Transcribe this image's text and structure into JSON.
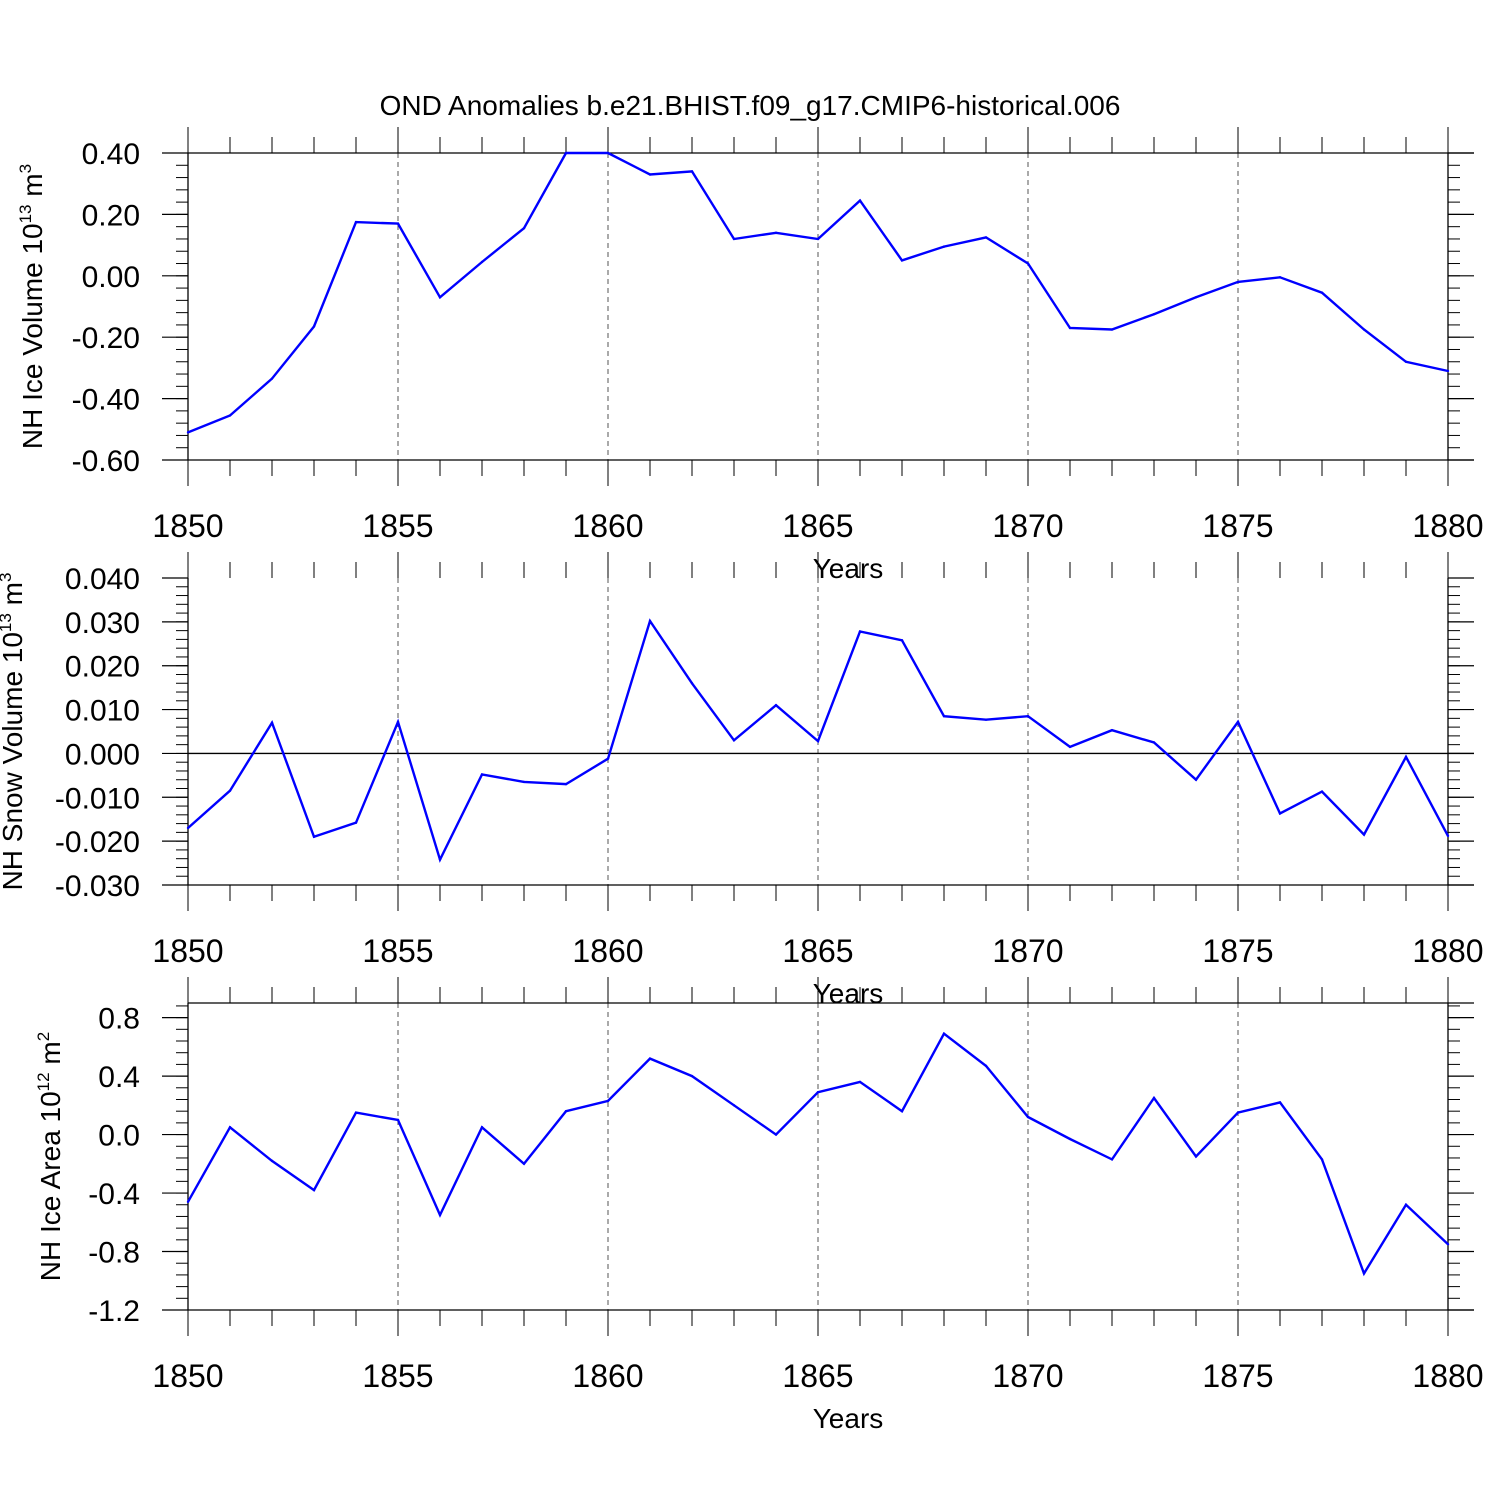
{
  "figure_title": "OND Anomalies b.e21.BHIST.f09_g17.CMIP6-historical.006",
  "colors": {
    "series": "#0000ff",
    "axis": "#000000",
    "grid": "#555555"
  },
  "chart_data": [
    {
      "type": "line",
      "title": "OND Anomalies b.e21.BHIST.f09_g17.CMIP6-historical.006",
      "ylabel": {
        "main": "NH Ice Volume 10",
        "sup": "13",
        "unit": " m",
        "unit_sup": "3"
      },
      "xlabel": "Years",
      "xlim": [
        1850,
        1880
      ],
      "ylim": [
        -0.6,
        0.4
      ],
      "yticks": [
        0.4,
        0.2,
        0.0,
        -0.2,
        -0.4,
        -0.6
      ],
      "ytick_labels": [
        "0.40",
        "0.20",
        "0.00",
        "-0.20",
        "-0.40",
        "-0.60"
      ],
      "yminor_step": 0.04,
      "xticks": [
        1850,
        1855,
        1860,
        1865,
        1870,
        1875,
        1880
      ],
      "xtick_labels": [
        "1850",
        "1855",
        "1860",
        "1865",
        "1870",
        "1875",
        "1880"
      ],
      "refline": 0.4,
      "series": [
        {
          "name": "NH Ice Volume",
          "x": [
            1850,
            1851,
            1852,
            1853,
            1854,
            1855,
            1856,
            1857,
            1858,
            1859,
            1860,
            1861,
            1862,
            1863,
            1864,
            1865,
            1866,
            1867,
            1868,
            1869,
            1870,
            1871,
            1872,
            1873,
            1874,
            1875,
            1876,
            1877,
            1878,
            1879,
            1880
          ],
          "values": [
            -0.51,
            -0.455,
            -0.335,
            -0.165,
            0.175,
            0.17,
            -0.07,
            0.045,
            0.155,
            0.4,
            0.4,
            0.33,
            0.34,
            0.12,
            0.14,
            0.12,
            0.245,
            0.05,
            0.095,
            0.125,
            0.04,
            -0.17,
            -0.175,
            -0.125,
            -0.07,
            -0.02,
            -0.005,
            -0.055,
            -0.175,
            -0.28,
            -0.31
          ]
        }
      ]
    },
    {
      "type": "line",
      "ylabel": {
        "main": "NH Snow Volume 10",
        "sup": "13",
        "unit": " m",
        "unit_sup": "3"
      },
      "xlabel": "Years",
      "xlim": [
        1850,
        1880
      ],
      "ylim": [
        -0.03,
        0.04
      ],
      "yticks": [
        0.04,
        0.03,
        0.02,
        0.01,
        0.0,
        -0.01,
        -0.02,
        -0.03
      ],
      "ytick_labels": [
        "0.040",
        "0.030",
        "0.020",
        "0.010",
        "0.000",
        "-0.010",
        "-0.020",
        "-0.030"
      ],
      "yminor_step": 0.002,
      "xticks": [
        1850,
        1855,
        1860,
        1865,
        1870,
        1875,
        1880
      ],
      "xtick_labels": [
        "1850",
        "1855",
        "1860",
        "1865",
        "1870",
        "1875",
        "1880"
      ],
      "refline": 0.0,
      "series": [
        {
          "name": "NH Snow Volume",
          "x": [
            1850,
            1851,
            1852,
            1853,
            1854,
            1855,
            1856,
            1857,
            1858,
            1859,
            1860,
            1861,
            1862,
            1863,
            1864,
            1865,
            1866,
            1867,
            1868,
            1869,
            1870,
            1871,
            1872,
            1873,
            1874,
            1875,
            1876,
            1877,
            1878,
            1879,
            1880
          ],
          "values": [
            -0.017,
            -0.0085,
            0.007,
            -0.019,
            -0.0158,
            0.0072,
            -0.0242,
            -0.0048,
            -0.0065,
            -0.007,
            -0.0012,
            0.0302,
            0.016,
            0.003,
            0.011,
            0.0028,
            0.0278,
            0.0258,
            0.0085,
            0.0077,
            0.0085,
            0.0015,
            0.0053,
            0.0025,
            -0.006,
            0.0072,
            -0.0137,
            -0.0087,
            -0.0185,
            -0.0008,
            -0.0188
          ]
        }
      ]
    },
    {
      "type": "line",
      "ylabel": {
        "main": "NH Ice Area 10",
        "sup": "12",
        "unit": " m",
        "unit_sup": "2"
      },
      "xlabel": "Years",
      "xlim": [
        1850,
        1880
      ],
      "ylim": [
        -1.2,
        0.9
      ],
      "yticks": [
        0.8,
        0.4,
        0.0,
        -0.4,
        -0.8,
        -1.2
      ],
      "ytick_labels": [
        "0.8",
        "0.4",
        "0.0",
        "-0.4",
        "-0.8",
        "-1.2"
      ],
      "yminor_step": 0.08,
      "xticks": [
        1850,
        1855,
        1860,
        1865,
        1870,
        1875,
        1880
      ],
      "xtick_labels": [
        "1850",
        "1855",
        "1860",
        "1865",
        "1870",
        "1875",
        "1880"
      ],
      "refline": 0.9,
      "series": [
        {
          "name": "NH Ice Area",
          "x": [
            1850,
            1851,
            1852,
            1853,
            1854,
            1855,
            1856,
            1857,
            1858,
            1859,
            1860,
            1861,
            1862,
            1863,
            1864,
            1865,
            1866,
            1867,
            1868,
            1869,
            1870,
            1871,
            1872,
            1873,
            1874,
            1875,
            1876,
            1877,
            1878,
            1879,
            1880
          ],
          "values": [
            -0.46,
            0.05,
            -0.18,
            -0.38,
            0.15,
            0.1,
            -0.55,
            0.05,
            -0.2,
            0.16,
            0.23,
            0.52,
            0.4,
            0.2,
            0.0,
            0.29,
            0.36,
            0.16,
            0.69,
            0.47,
            0.12,
            -0.03,
            -0.17,
            0.25,
            -0.15,
            0.15,
            0.22,
            -0.17,
            -0.95,
            -0.48,
            -0.75
          ]
        }
      ]
    }
  ]
}
